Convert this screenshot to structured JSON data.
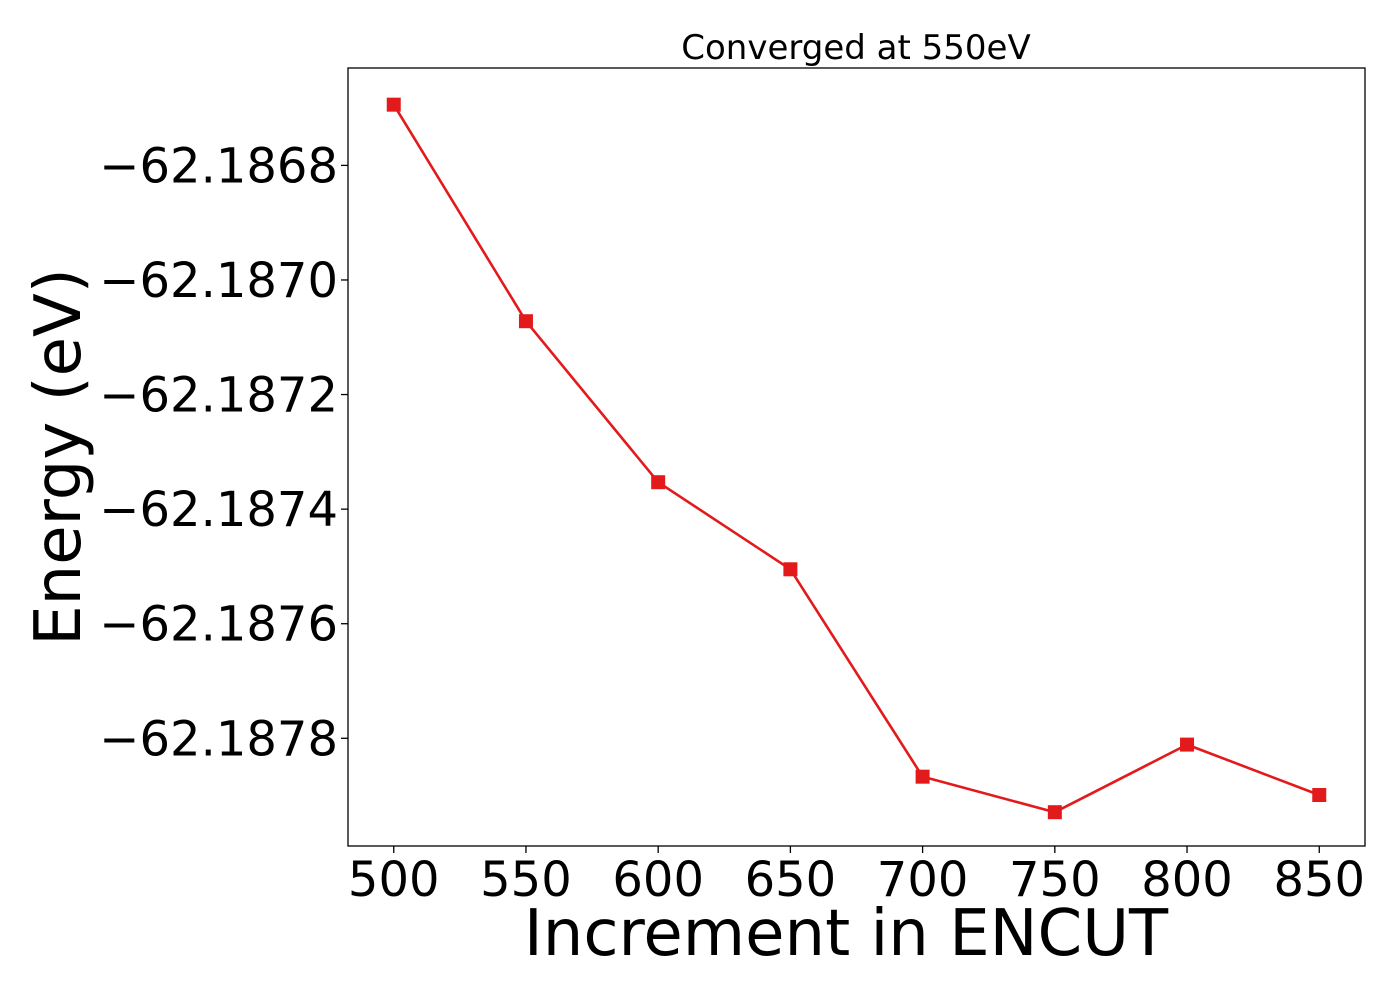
{
  "chart_data": {
    "type": "line",
    "title": "Converged at 550eV",
    "xlabel": "Increment in ENCUT",
    "ylabel": "Energy (eV)",
    "x": [
      500,
      550,
      600,
      650,
      700,
      750,
      800,
      850
    ],
    "series": [
      {
        "values": [
          -62.186694,
          -62.187072,
          -62.187353,
          -62.187505,
          -62.187867,
          -62.187929,
          -62.187811,
          -62.187899
        ],
        "color": "#e31a1c",
        "marker": "square"
      }
    ],
    "xticks": [
      500,
      550,
      600,
      650,
      700,
      750,
      800,
      850
    ],
    "xtick_labels": [
      "500",
      "550",
      "600",
      "650",
      "700",
      "750",
      "800",
      "850"
    ],
    "yticks": [
      -62.1868,
      -62.187,
      -62.1872,
      -62.1874,
      -62.1876,
      -62.1878
    ],
    "ytick_labels": [
      "−62.1868",
      "−62.1870",
      "−62.1872",
      "−62.1874",
      "−62.1876",
      "−62.1878"
    ],
    "xlim": [
      482.7,
      867.3
    ],
    "ylim": [
      -62.187988,
      -62.18663
    ],
    "grid": false,
    "legend": false
  }
}
